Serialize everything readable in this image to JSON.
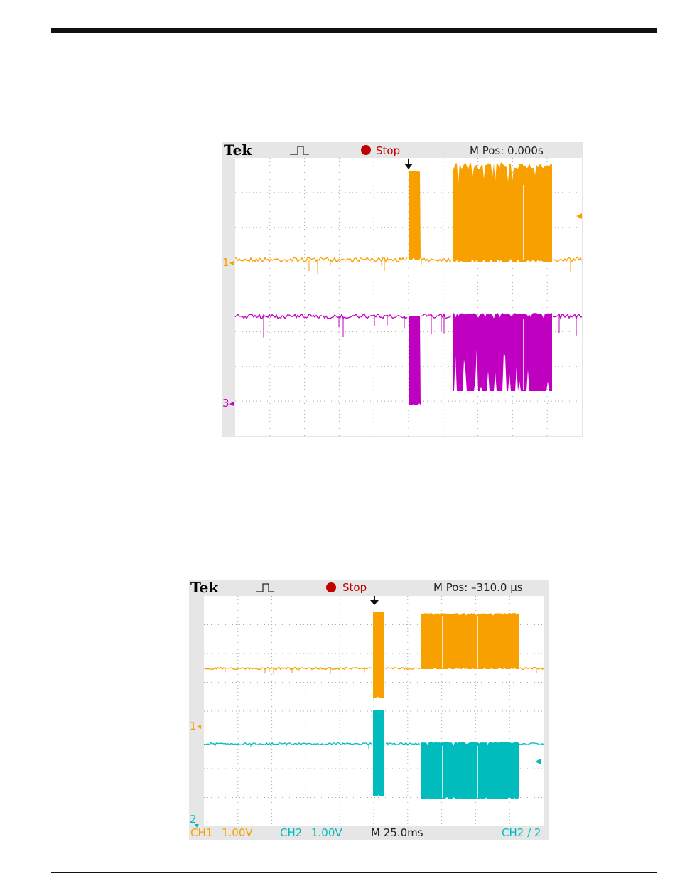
{
  "scope_1": {
    "brand": "Tek",
    "status": "Stop",
    "position": "M Pos: 0.000s",
    "channel_markers": [
      "1",
      "3"
    ]
  },
  "scope_2": {
    "brand": "Tek",
    "status": "Stop",
    "position": "M Pos: –310.0 µs",
    "channel_markers": [
      "1",
      "2"
    ],
    "footer": {
      "ch1": "CH1",
      "ch1_scale": "1.00V",
      "ch2": "CH2",
      "ch2_scale": "1.00V",
      "timebase": "M 25.0ms",
      "trigger": "CH2 ∕ 2"
    }
  }
}
